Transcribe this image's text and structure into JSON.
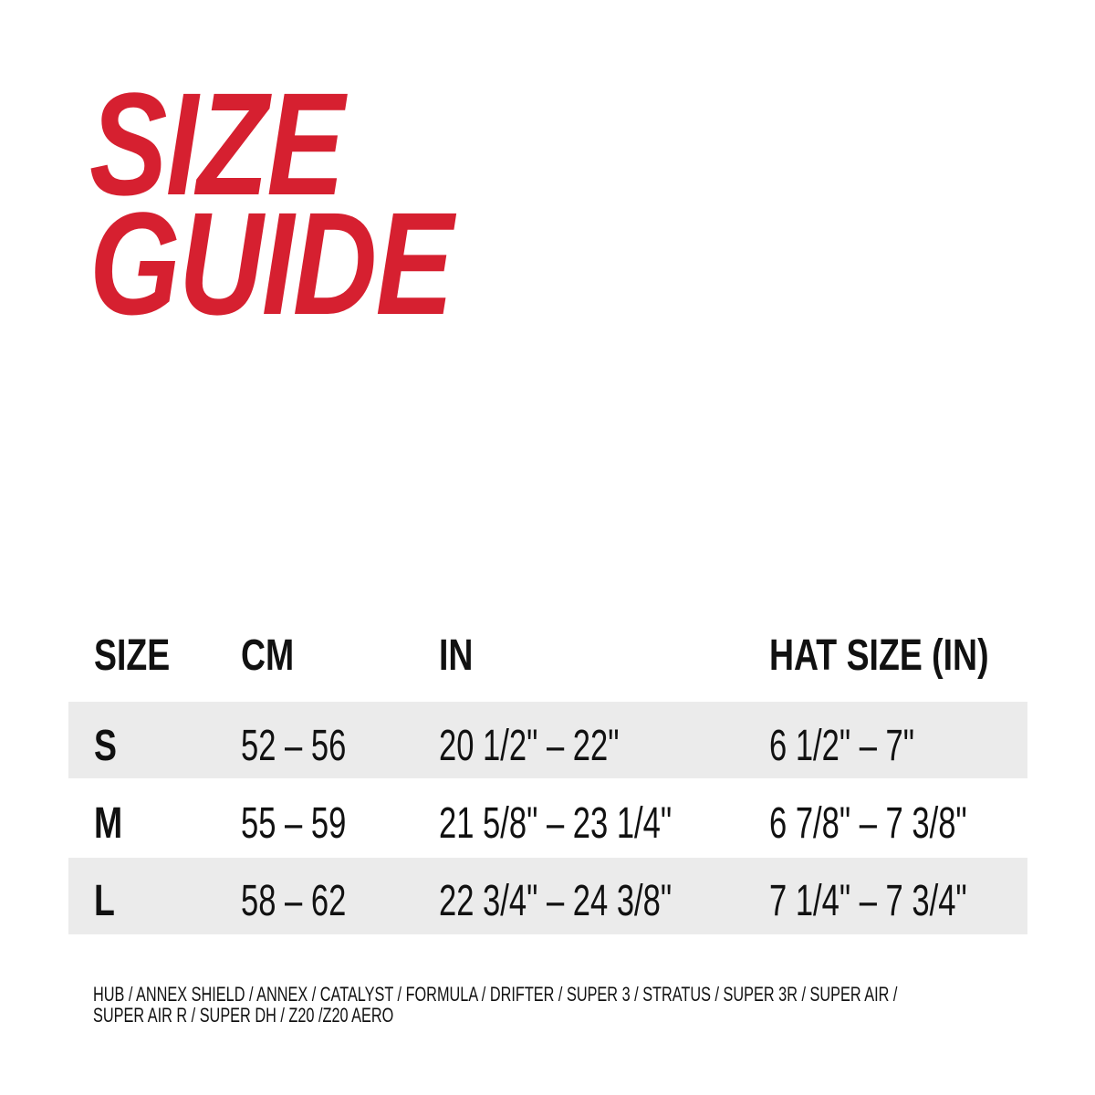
{
  "title": {
    "line1": "SIZE",
    "line2": "GUIDE",
    "color": "#d62030"
  },
  "table": {
    "headers": [
      "SIZE",
      "CM",
      "IN",
      "HAT SIZE (IN)"
    ],
    "rows": [
      {
        "size": "S",
        "cm": "52 – 56",
        "in": "20 1/2\" – 22\"",
        "hat": "6 1/2\" – 7\""
      },
      {
        "size": "M",
        "cm": "55 – 59",
        "in": "21 5/8\" – 23 1/4\"",
        "hat": "6 7/8\" – 7 3/8\""
      },
      {
        "size": "L",
        "cm": "58 – 62",
        "in": "22 3/4\" – 24 3/8\"",
        "hat": "7 1/4\" – 7 3/4\""
      }
    ],
    "band_color": "#ebebeb"
  },
  "footer": {
    "line1": "HUB / ANNEX SHIELD / ANNEX / CATALYST / FORMULA / DRIFTER / SUPER 3 / STRATUS / SUPER 3R / SUPER AIR /",
    "line2": "SUPER AIR R / SUPER DH / Z20 /Z20 AERO"
  }
}
